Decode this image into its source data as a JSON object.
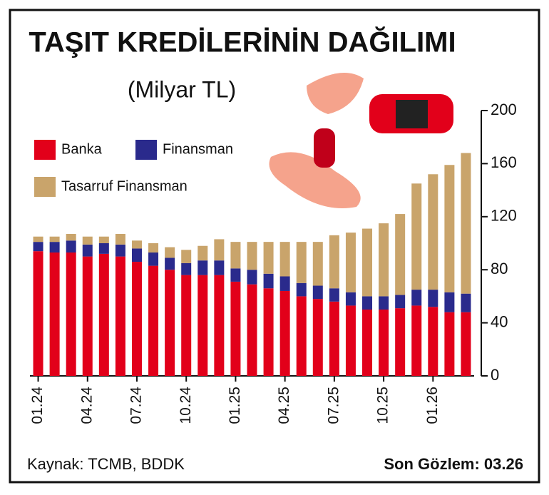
{
  "chart_data": {
    "type": "stacked_bar",
    "title": "TAŞIT KREDİLERİNİN DAĞILIMI",
    "subtitle": "(Milyar TL)",
    "categories": [
      "01.24",
      null,
      null,
      "04.24",
      null,
      null,
      "07.24",
      null,
      null,
      "10.24",
      null,
      null,
      "01.25",
      null,
      null,
      "04.25",
      null,
      null,
      "07.25",
      null,
      null,
      "10.25",
      null,
      null,
      "01.26",
      null,
      null
    ],
    "series": [
      {
        "name": "Banka",
        "color": "#e2001a",
        "values": [
          94,
          93,
          93,
          90,
          92,
          90,
          86,
          83,
          80,
          76,
          76,
          76,
          71,
          69,
          66,
          64,
          60,
          58,
          56,
          53,
          50,
          50,
          51,
          53,
          52,
          48,
          48
        ]
      },
      {
        "name": "Finansman",
        "color": "#2a2a8c",
        "values": [
          7,
          8,
          9,
          9,
          8,
          9,
          10,
          10,
          9,
          9,
          11,
          11,
          10,
          11,
          11,
          11,
          10,
          10,
          10,
          10,
          10,
          10,
          10,
          12,
          13,
          15,
          14
        ]
      },
      {
        "name": "Tasarruf Finansman",
        "color": "#c9a46b",
        "values": [
          4,
          4,
          5,
          6,
          5,
          8,
          6,
          7,
          8,
          10,
          11,
          16,
          20,
          21,
          24,
          26,
          31,
          33,
          40,
          45,
          51,
          55,
          61,
          80,
          87,
          96,
          106
        ]
      }
    ],
    "ylim": [
      0,
      200
    ],
    "yticks": [
      0,
      40,
      80,
      120,
      160,
      200
    ],
    "source": "Kaynak: TCMB, BDDK",
    "last_observation": "Son Gözlem: 03.26"
  }
}
